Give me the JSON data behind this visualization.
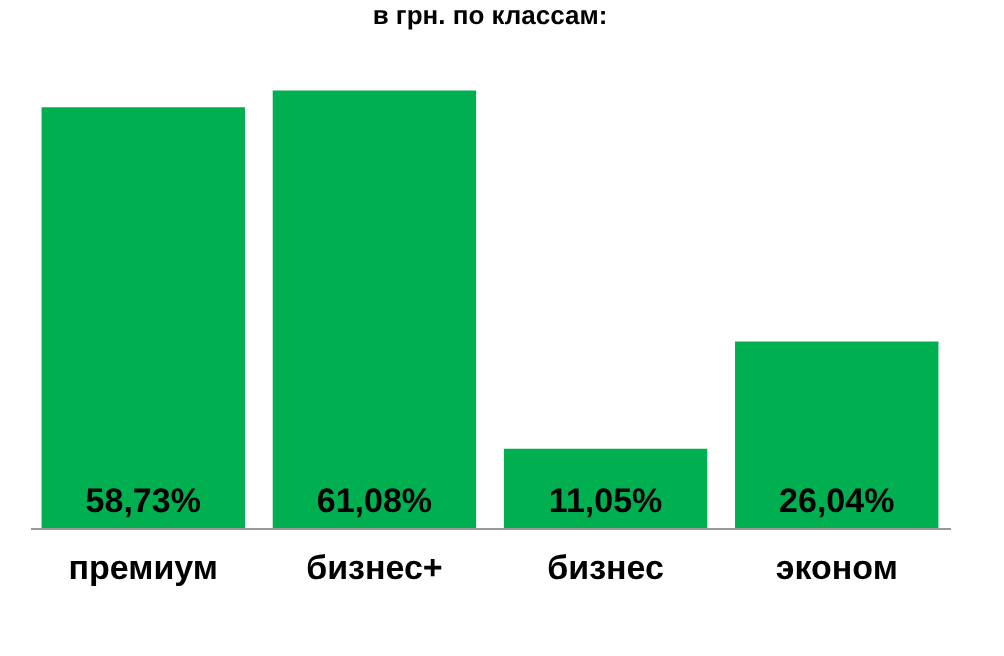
{
  "chart_data": {
    "type": "bar",
    "title": "в грн. по классам:",
    "categories": [
      "премиум",
      "бизнес+",
      "бизнес",
      "эконом"
    ],
    "values": [
      58.73,
      61.08,
      11.05,
      26.04
    ],
    "value_labels": [
      "58,73%",
      "61,08%",
      "11,05%",
      "26,04%"
    ],
    "color": "#00b050"
  }
}
